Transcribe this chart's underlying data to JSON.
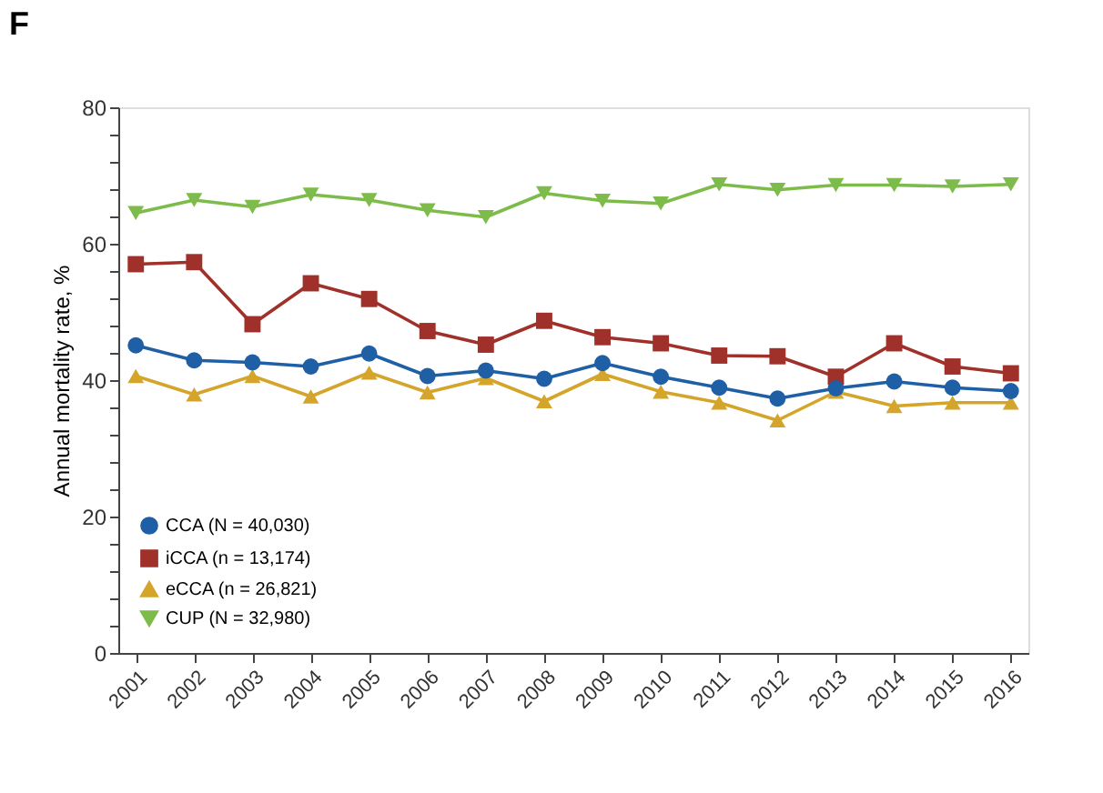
{
  "chart_data": {
    "type": "line",
    "title": "F",
    "ylabel": "Annual mortality rate, %",
    "categories": [
      "2001",
      "2002",
      "2003",
      "2004",
      "2005",
      "2006",
      "2007",
      "2008",
      "2009",
      "2010",
      "2011",
      "2012",
      "2013",
      "2014",
      "2015",
      "2016"
    ],
    "series": [
      {
        "name": "CCA (N = 40,030)",
        "color": "#1f5fa6",
        "marker": "circle",
        "values": [
          45.1,
          42.9,
          42.6,
          42.0,
          43.9,
          40.6,
          41.4,
          40.2,
          42.5,
          40.5,
          38.9,
          37.3,
          38.8,
          39.8,
          38.9,
          38.4
        ]
      },
      {
        "name": "iCCA (n = 13,174)",
        "color": "#a0302a",
        "marker": "square",
        "values": [
          57.0,
          57.3,
          48.2,
          54.2,
          51.9,
          47.2,
          45.2,
          48.7,
          46.3,
          45.4,
          43.6,
          43.5,
          40.5,
          45.4,
          42.0,
          41.0
        ]
      },
      {
        "name": "eCCA (n = 26,821)",
        "color": "#d4a52a",
        "marker": "triangle",
        "values": [
          40.6,
          37.9,
          40.6,
          37.6,
          41.1,
          38.2,
          40.3,
          36.9,
          40.9,
          38.3,
          36.7,
          34.1,
          38.3,
          36.2,
          36.7,
          36.7
        ]
      },
      {
        "name": "CUP (N = 32,980)",
        "color": "#7dbb4a",
        "marker": "triangle-down",
        "values": [
          64.5,
          66.4,
          65.4,
          67.2,
          66.4,
          64.9,
          63.9,
          67.4,
          66.3,
          65.9,
          68.7,
          67.9,
          68.6,
          68.6,
          68.4,
          68.7
        ]
      }
    ],
    "ylim": [
      0,
      80
    ],
    "yticks": [
      0,
      {
        "value": 4,
        "label": null
      },
      {
        "value": 8,
        "label": null
      },
      {
        "value": 12,
        "label": null
      },
      {
        "value": 16,
        "label": null
      },
      20,
      {
        "value": 24,
        "label": null
      },
      {
        "value": 28,
        "label": null
      },
      {
        "value": 32,
        "label": null
      },
      {
        "value": 36,
        "label": null
      },
      40,
      {
        "value": 44,
        "label": null
      },
      {
        "value": 48,
        "label": null
      },
      {
        "value": 52,
        "label": null
      },
      {
        "value": 56,
        "label": null
      },
      60,
      {
        "value": 64,
        "label": null
      },
      {
        "value": 68,
        "label": null
      },
      {
        "value": 72,
        "label": null
      },
      {
        "value": 76,
        "label": null
      },
      80
    ],
    "grid": false,
    "legend": "bottom left",
    "line_style": "solid"
  }
}
